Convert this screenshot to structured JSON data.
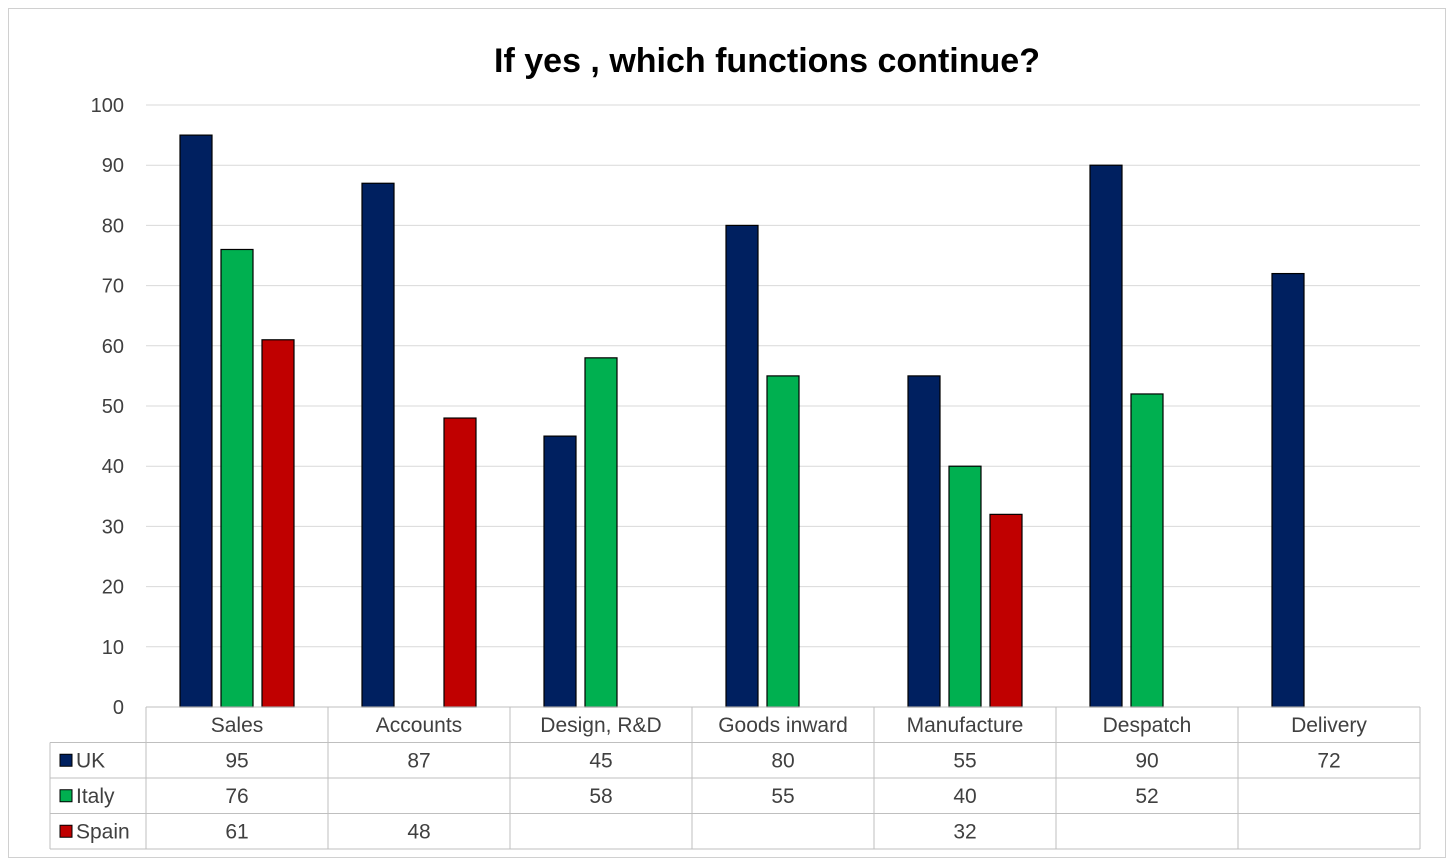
{
  "chart_data": {
    "type": "bar",
    "title": "If yes , which functions continue?",
    "xlabel": "",
    "ylabel": "",
    "ylim": [
      0,
      100
    ],
    "yticks": [
      0,
      10,
      20,
      30,
      40,
      50,
      60,
      70,
      80,
      90,
      100
    ],
    "grid": true,
    "legend": "data-table-left",
    "categories": [
      "Sales",
      "Accounts",
      "Design, R&D",
      "Goods inward",
      "Manufacture",
      "Despatch",
      "Delivery"
    ],
    "series": [
      {
        "name": "UK",
        "color": "#002060",
        "values": [
          95,
          87,
          45,
          80,
          55,
          90,
          72
        ]
      },
      {
        "name": "Italy",
        "color": "#00B050",
        "values": [
          76,
          null,
          58,
          55,
          40,
          52,
          null
        ]
      },
      {
        "name": "Spain",
        "color": "#C00000",
        "values": [
          61,
          48,
          null,
          null,
          32,
          null,
          null
        ]
      }
    ]
  }
}
